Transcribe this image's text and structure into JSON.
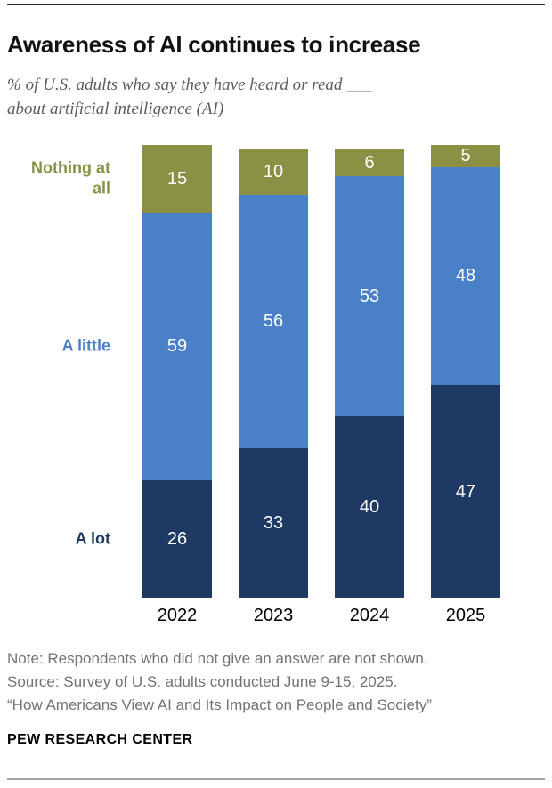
{
  "page": {
    "title": "Awareness of AI continues to increase",
    "subtitle_lines": [
      "% of U.S. adults who say they have heard or read ___",
      "about artificial intelligence (AI)"
    ],
    "notes": [
      "Note: Respondents who did not give an answer are not shown.",
      "Source: Survey of U.S. adults conducted June 9-15, 2025.",
      "“How Americans View AI and Its Impact on People and Society”"
    ],
    "footer": "PEW RESEARCH CENTER"
  },
  "chart_data": {
    "type": "bar",
    "stacked": true,
    "title": "Awareness of AI continues to increase",
    "categories": [
      "2022",
      "2023",
      "2024",
      "2025"
    ],
    "series": [
      {
        "name": "A lot",
        "color": "#1e3a64",
        "values": [
          26,
          33,
          40,
          47
        ]
      },
      {
        "name": "A little",
        "color": "#4a80c8",
        "values": [
          59,
          56,
          53,
          48
        ]
      },
      {
        "name": "Nothing at all",
        "color": "#8a9144",
        "values": [
          15,
          10,
          6,
          5
        ]
      }
    ],
    "value_label_color": "#ffffff",
    "ylim": [
      0,
      100
    ],
    "grid": false,
    "legend_position": "left",
    "xlabel": "",
    "ylabel": "% of U.S. adults"
  }
}
